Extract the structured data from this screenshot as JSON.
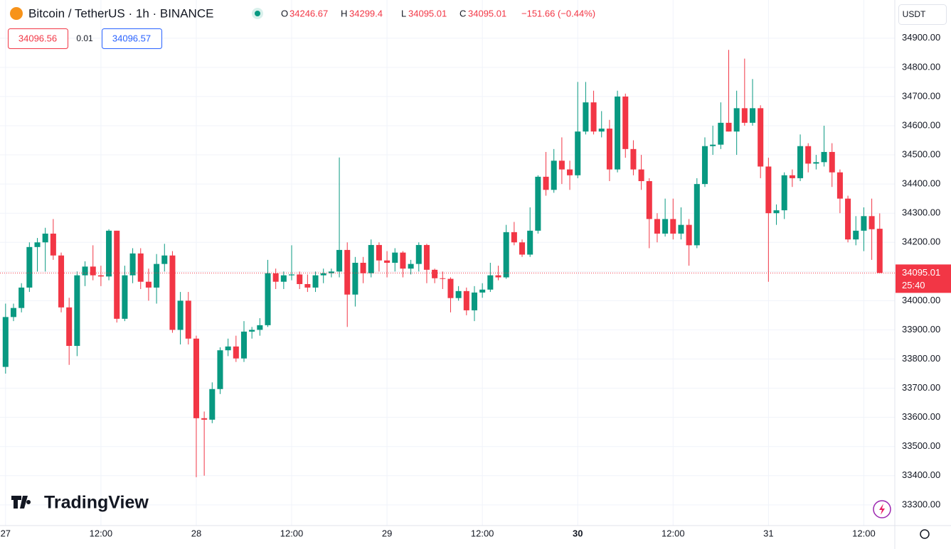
{
  "header": {
    "title": "Bitcoin / TetherUS · 1h · BINANCE",
    "o_label": "O",
    "h_label": "H",
    "l_label": "L",
    "c_label": "C",
    "change": "−151.66 (−0.44%)",
    "bid": "34096.56",
    "spread": "0.01",
    "ask": "34096.57",
    "currency": "USDT",
    "countdown": "25:40",
    "watermark": "TradingView"
  },
  "chart_data": {
    "type": "candlestick",
    "up_color": "#089981",
    "down_color": "#f23645",
    "grid": true,
    "xlim": [
      -0.7,
      111.9
    ],
    "ylim": [
      33229,
      35031
    ],
    "xticks": [
      {
        "value": 0,
        "label": "27"
      },
      {
        "value": 12,
        "label": "12:00"
      },
      {
        "value": 24,
        "label": "28"
      },
      {
        "value": 36,
        "label": "12:00"
      },
      {
        "value": 48,
        "label": "29"
      },
      {
        "value": 60,
        "label": "12:00"
      },
      {
        "value": 72,
        "label": "30"
      },
      {
        "value": 84,
        "label": "12:00"
      },
      {
        "value": 96,
        "label": "31"
      },
      {
        "value": 108,
        "label": "12:00"
      }
    ],
    "yticks": [
      {
        "value": 33300,
        "label": "33300.00"
      },
      {
        "value": 33400,
        "label": "33400.00"
      },
      {
        "value": 33500,
        "label": "33500.00"
      },
      {
        "value": 33600,
        "label": "33600.00"
      },
      {
        "value": 33700,
        "label": "33700.00"
      },
      {
        "value": 33800,
        "label": "33800.00"
      },
      {
        "value": 33900,
        "label": "33900.00"
      },
      {
        "value": 34000,
        "label": "34000.00"
      },
      {
        "value": 34100,
        "label": "34100.00"
      },
      {
        "value": 34200,
        "label": "34200.00"
      },
      {
        "value": 34300,
        "label": "34300.00"
      },
      {
        "value": 34400,
        "label": "34400.00"
      },
      {
        "value": 34500,
        "label": "34500.00"
      },
      {
        "value": 34600,
        "label": "34600.00"
      },
      {
        "value": 34700,
        "label": "34700.00"
      },
      {
        "value": 34800,
        "label": "34800.00"
      },
      {
        "value": 34900,
        "label": "34900.00"
      }
    ],
    "ohlc": [
      [
        33773,
        33990,
        33750,
        33944
      ],
      [
        33944,
        33990,
        33930,
        33975
      ],
      [
        33975,
        34060,
        33960,
        34045
      ],
      [
        34045,
        34200,
        34030,
        34184
      ],
      [
        34184,
        34215,
        34100,
        34200
      ],
      [
        34200,
        34250,
        34100,
        34230
      ],
      [
        34230,
        34280,
        34140,
        34155
      ],
      [
        34155,
        34165,
        33960,
        33977
      ],
      [
        33977,
        34010,
        33780,
        33845
      ],
      [
        33845,
        34100,
        33810,
        34087
      ],
      [
        34087,
        34135,
        34050,
        34117
      ],
      [
        34117,
        34190,
        34070,
        34087
      ],
      [
        34087,
        34120,
        34050,
        34083
      ],
      [
        34083,
        34245,
        34070,
        34240
      ],
      [
        34240,
        34240,
        33925,
        33938
      ],
      [
        33938,
        34120,
        33930,
        34087
      ],
      [
        34087,
        34180,
        34060,
        34162
      ],
      [
        34162,
        34180,
        34040,
        34065
      ],
      [
        34065,
        34110,
        34000,
        34045
      ],
      [
        34045,
        34160,
        33990,
        34126
      ],
      [
        34126,
        34195,
        34100,
        34155
      ],
      [
        34155,
        34170,
        33890,
        33900
      ],
      [
        33900,
        34030,
        33850,
        34000
      ],
      [
        34000,
        34030,
        33850,
        33870
      ],
      [
        33870,
        33880,
        33395,
        33597
      ],
      [
        33597,
        33620,
        33400,
        33592
      ],
      [
        33592,
        33720,
        33580,
        33697
      ],
      [
        33697,
        33840,
        33680,
        33830
      ],
      [
        33830,
        33870,
        33810,
        33843
      ],
      [
        33843,
        33880,
        33790,
        33802
      ],
      [
        33802,
        33930,
        33790,
        33894
      ],
      [
        33894,
        33910,
        33870,
        33900
      ],
      [
        33900,
        33940,
        33880,
        33916
      ],
      [
        33916,
        34140,
        33910,
        34094
      ],
      [
        34094,
        34110,
        34040,
        34065
      ],
      [
        34065,
        34100,
        34040,
        34087
      ],
      [
        34087,
        34190,
        34070,
        34090
      ],
      [
        34090,
        34100,
        34040,
        34057
      ],
      [
        34057,
        34090,
        34030,
        34045
      ],
      [
        34045,
        34100,
        34030,
        34087
      ],
      [
        34087,
        34110,
        34060,
        34094
      ],
      [
        34094,
        34110,
        34080,
        34100
      ],
      [
        34100,
        34491,
        34080,
        34174
      ],
      [
        34174,
        34200,
        33910,
        34021
      ],
      [
        34021,
        34150,
        33980,
        34130
      ],
      [
        34130,
        34150,
        34060,
        34094
      ],
      [
        34094,
        34210,
        34080,
        34191
      ],
      [
        34191,
        34200,
        34100,
        34138
      ],
      [
        34138,
        34170,
        34080,
        34130
      ],
      [
        34130,
        34180,
        34100,
        34165
      ],
      [
        34165,
        34170,
        34080,
        34110
      ],
      [
        34110,
        34140,
        34090,
        34126
      ],
      [
        34126,
        34200,
        34100,
        34191
      ],
      [
        34191,
        34195,
        34060,
        34106
      ],
      [
        34106,
        34110,
        34060,
        34077
      ],
      [
        34077,
        34100,
        34040,
        34075
      ],
      [
        34075,
        34080,
        33960,
        34009
      ],
      [
        34009,
        34050,
        34000,
        34033
      ],
      [
        34033,
        34045,
        33950,
        33967
      ],
      [
        33967,
        34050,
        33930,
        34028
      ],
      [
        34028,
        34060,
        34010,
        34038
      ],
      [
        34038,
        34130,
        34030,
        34087
      ],
      [
        34087,
        34120,
        34070,
        34080
      ],
      [
        34080,
        34260,
        34075,
        34235
      ],
      [
        34235,
        34270,
        34190,
        34200
      ],
      [
        34200,
        34210,
        34150,
        34158
      ],
      [
        34158,
        34320,
        34150,
        34240
      ],
      [
        34240,
        34430,
        34230,
        34425
      ],
      [
        34425,
        34510,
        34360,
        34380
      ],
      [
        34380,
        34520,
        34370,
        34480
      ],
      [
        34480,
        34560,
        34400,
        34450
      ],
      [
        34450,
        34480,
        34380,
        34430
      ],
      [
        34430,
        34750,
        34420,
        34580
      ],
      [
        34580,
        34750,
        34570,
        34680
      ],
      [
        34680,
        34720,
        34570,
        34580
      ],
      [
        34580,
        34650,
        34560,
        34590
      ],
      [
        34590,
        34620,
        34410,
        34450
      ],
      [
        34450,
        34720,
        34440,
        34700
      ],
      [
        34700,
        34710,
        34490,
        34520
      ],
      [
        34520,
        34550,
        34430,
        34450
      ],
      [
        34450,
        34500,
        34380,
        34410
      ],
      [
        34410,
        34420,
        34180,
        34280
      ],
      [
        34280,
        34300,
        34200,
        34230
      ],
      [
        34230,
        34350,
        34220,
        34280
      ],
      [
        34280,
        34350,
        34210,
        34230
      ],
      [
        34230,
        34320,
        34210,
        34260
      ],
      [
        34260,
        34280,
        34120,
        34190
      ],
      [
        34190,
        34420,
        34180,
        34400
      ],
      [
        34400,
        34560,
        34390,
        34530
      ],
      [
        34530,
        34600,
        34500,
        34535
      ],
      [
        34535,
        34680,
        34520,
        34610
      ],
      [
        34610,
        34860,
        34580,
        34580
      ],
      [
        34580,
        34720,
        34500,
        34660
      ],
      [
        34660,
        34830,
        34600,
        34610
      ],
      [
        34610,
        34760,
        34600,
        34660
      ],
      [
        34660,
        34670,
        34420,
        34460
      ],
      [
        34460,
        34490,
        34065,
        34300
      ],
      [
        34300,
        34330,
        34260,
        34310
      ],
      [
        34310,
        34440,
        34280,
        34430
      ],
      [
        34430,
        34450,
        34390,
        34420
      ],
      [
        34420,
        34570,
        34410,
        34530
      ],
      [
        34530,
        34540,
        34440,
        34470
      ],
      [
        34470,
        34500,
        34450,
        34475
      ],
      [
        34475,
        34600,
        34460,
        34510
      ],
      [
        34510,
        34540,
        34390,
        34440
      ],
      [
        34440,
        34450,
        34300,
        34350
      ],
      [
        34350,
        34360,
        34200,
        34210
      ],
      [
        34210,
        34290,
        34190,
        34240
      ],
      [
        34240,
        34320,
        34170,
        34290
      ],
      [
        34290,
        34350,
        34140,
        34245
      ],
      [
        34246.67,
        34299.4,
        34095.01,
        34095.01
      ]
    ]
  }
}
